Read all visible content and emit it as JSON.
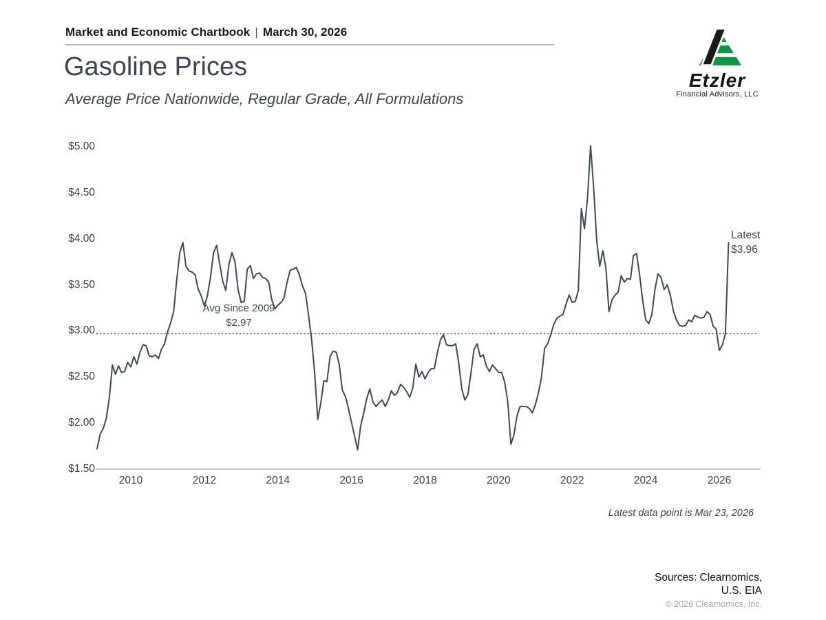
{
  "header": {
    "title": "Market and Economic Chartbook",
    "separator": "|",
    "date": "March 30, 2026"
  },
  "logo": {
    "wordmark": "Etzler",
    "subtitle": "Financial Advisors, LLC",
    "mark_black": "#1a1a1a",
    "mark_green": "#0c9648"
  },
  "page": {
    "title": "Gasoline Prices",
    "subtitle": "Average Price Nationwide, Regular Grade, All Formulations"
  },
  "chart_data": {
    "type": "line",
    "title": "Gasoline Prices",
    "subtitle": "Average Price Nationwide, Regular Grade, All Formulations",
    "series_name": "U.S. average price, regular grade gasoline, all formulations ($/gal)",
    "line_color": "#3b4a5b",
    "axis_color": "#9aa4ac",
    "grid": false,
    "y_range": [
      1.5,
      5.0
    ],
    "x_range": [
      2009.08,
      2026.35
    ],
    "y_tick_labels": [
      "$5.00",
      "$4.50",
      "$4.00",
      "$3.50",
      "$3.00",
      "$2.50",
      "$2.00",
      "$1.50"
    ],
    "x_tick_labels": [
      "2010",
      "2012",
      "2014",
      "2016",
      "2018",
      "2020",
      "2022",
      "2024",
      "2026"
    ],
    "avg_line": {
      "value": 2.97,
      "style": "dotted",
      "label": "Avg Since 2009",
      "value_label": "$2.97"
    },
    "latest": {
      "label": "Latest",
      "value": 3.96,
      "value_label": "$3.96",
      "date": "Mar 23, 2026"
    },
    "series": {
      "start_year": 2009,
      "frequency": "monthly",
      "unit": "USD per gallon",
      "values": [
        1.72,
        1.88,
        1.94,
        2.05,
        2.27,
        2.63,
        2.53,
        2.62,
        2.55,
        2.56,
        2.66,
        2.61,
        2.72,
        2.64,
        2.77,
        2.85,
        2.84,
        2.73,
        2.72,
        2.74,
        2.7,
        2.8,
        2.86,
        2.99,
        3.09,
        3.21,
        3.56,
        3.85,
        3.96,
        3.7,
        3.65,
        3.64,
        3.61,
        3.45,
        3.38,
        3.27,
        3.38,
        3.58,
        3.85,
        3.93,
        3.73,
        3.54,
        3.44,
        3.72,
        3.85,
        3.75,
        3.45,
        3.31,
        3.32,
        3.67,
        3.71,
        3.57,
        3.62,
        3.63,
        3.58,
        3.57,
        3.53,
        3.34,
        3.24,
        3.28,
        3.31,
        3.36,
        3.53,
        3.66,
        3.67,
        3.69,
        3.61,
        3.49,
        3.41,
        3.17,
        2.91,
        2.54,
        2.04,
        2.22,
        2.46,
        2.45,
        2.72,
        2.78,
        2.77,
        2.64,
        2.36,
        2.29,
        2.16,
        2.01,
        1.86,
        1.71,
        1.97,
        2.11,
        2.27,
        2.37,
        2.23,
        2.18,
        2.22,
        2.25,
        2.18,
        2.25,
        2.35,
        2.3,
        2.33,
        2.42,
        2.39,
        2.34,
        2.28,
        2.38,
        2.64,
        2.5,
        2.56,
        2.48,
        2.55,
        2.59,
        2.59,
        2.76,
        2.9,
        2.96,
        2.85,
        2.84,
        2.84,
        2.86,
        2.65,
        2.37,
        2.25,
        2.31,
        2.55,
        2.8,
        2.86,
        2.72,
        2.74,
        2.62,
        2.56,
        2.63,
        2.59,
        2.55,
        2.55,
        2.44,
        2.23,
        1.77,
        1.87,
        2.08,
        2.18,
        2.18,
        2.18,
        2.16,
        2.11,
        2.2,
        2.33,
        2.5,
        2.81,
        2.86,
        2.96,
        3.07,
        3.14,
        3.16,
        3.18,
        3.29,
        3.39,
        3.31,
        3.32,
        3.44,
        4.33,
        4.11,
        4.44,
        5.01,
        4.56,
        3.98,
        3.7,
        3.87,
        3.69,
        3.21,
        3.34,
        3.39,
        3.42,
        3.6,
        3.53,
        3.57,
        3.56,
        3.82,
        3.84,
        3.61,
        3.33,
        3.12,
        3.08,
        3.18,
        3.45,
        3.62,
        3.58,
        3.45,
        3.5,
        3.39,
        3.22,
        3.12,
        3.06,
        3.05,
        3.06,
        3.12,
        3.1,
        3.17,
        3.15,
        3.14,
        3.15,
        3.21,
        3.18,
        3.05,
        3.02,
        2.79,
        2.85,
        2.97,
        3.96
      ]
    }
  },
  "footnote": "Latest data point is Mar 23, 2026",
  "footer": {
    "sources_line1": "Sources: Clearnomics,",
    "sources_line2": "U.S. EIA",
    "copyright": "© 2026 Clearnomics, Inc."
  }
}
